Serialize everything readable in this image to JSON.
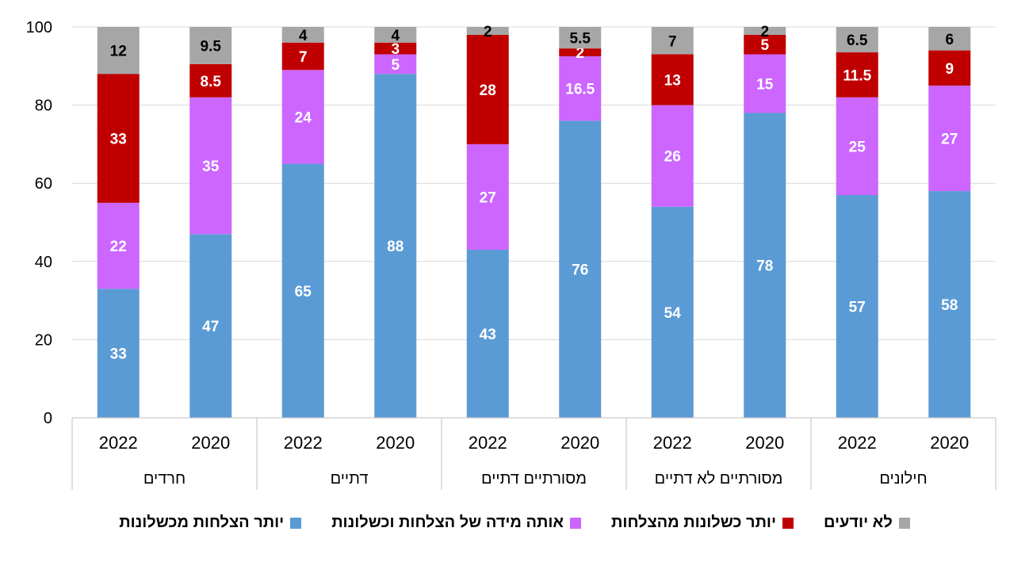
{
  "chart_data": {
    "type": "bar",
    "stacked": true,
    "ylim": [
      0,
      100
    ],
    "yticks": [
      0,
      20,
      40,
      60,
      80,
      100
    ],
    "grid": true,
    "legend_position": "bottom",
    "groups": [
      "חרדים",
      "דתיים",
      "מסורתיים דתיים",
      "מסורתיים לא דתיים",
      "חילונים"
    ],
    "categories": [
      "2022",
      "2020",
      "2022",
      "2020",
      "2022",
      "2020",
      "2022",
      "2020",
      "2022",
      "2020"
    ],
    "series": [
      {
        "name": "יותר הצלחות מכשלונות",
        "color": "#5b9bd5",
        "label_color": "#ffffff",
        "values": [
          33,
          47,
          65,
          88,
          43,
          76,
          54,
          78,
          57,
          58
        ]
      },
      {
        "name": "אותה מידה של הצלחות וכשלונות",
        "color": "#cc66ff",
        "label_color": "#ffffff",
        "values": [
          22,
          35,
          24,
          5,
          27,
          16.5,
          26,
          15,
          25,
          27
        ]
      },
      {
        "name": "יותר כשלונות מהצלחות",
        "color": "#c00000",
        "label_color": "#ffffff",
        "values": [
          33,
          8.5,
          7,
          3,
          28,
          2,
          13,
          5,
          11.5,
          9
        ]
      },
      {
        "name": "לא יודעים",
        "color": "#a6a6a6",
        "label_color": "#000000",
        "values": [
          12,
          9.5,
          4,
          4,
          2,
          5.5,
          7,
          2,
          6.5,
          6
        ]
      }
    ]
  }
}
